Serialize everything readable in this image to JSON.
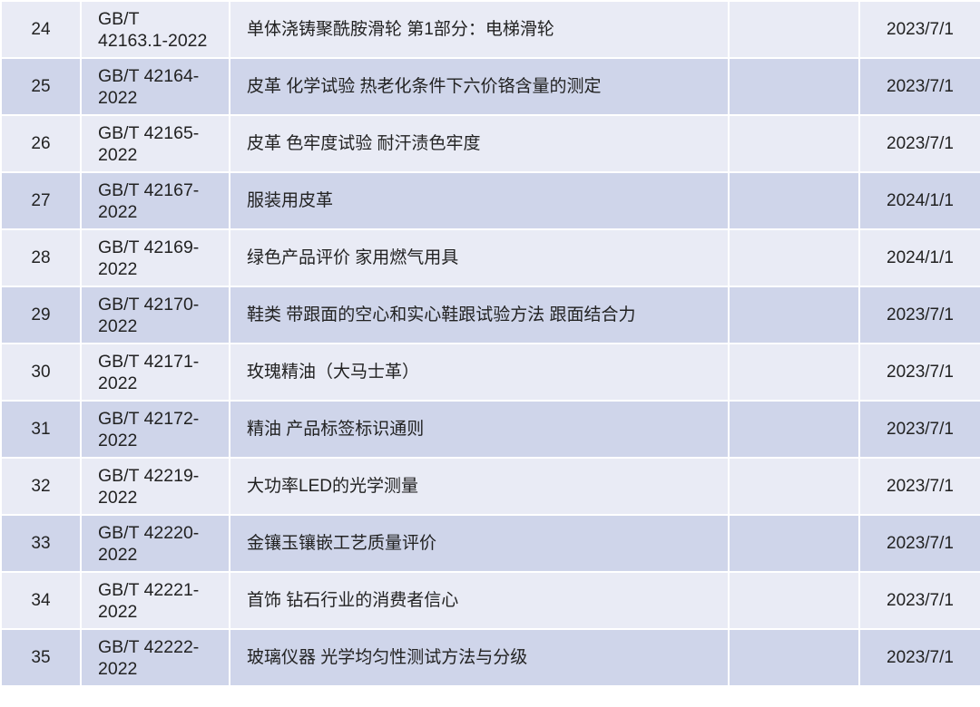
{
  "colors": {
    "row_light": "#e9ebf5",
    "row_dark": "#cfd5ea",
    "border": "#ffffff"
  },
  "rows": [
    {
      "no": "24",
      "code_line1": "GB/T",
      "code_line2": "42163.1-2022",
      "name": "单体浇铸聚酰胺滑轮 第1部分：电梯滑轮",
      "extra": "",
      "date": "2023/7/1"
    },
    {
      "no": "25",
      "code_line1": "GB/T 42164-",
      "code_line2": "2022",
      "name": "皮革 化学试验 热老化条件下六价铬含量的测定",
      "extra": "",
      "date": "2023/7/1"
    },
    {
      "no": "26",
      "code_line1": "GB/T 42165-",
      "code_line2": "2022",
      "name": "皮革 色牢度试验 耐汗渍色牢度",
      "extra": "",
      "date": "2023/7/1"
    },
    {
      "no": "27",
      "code_line1": "GB/T 42167-",
      "code_line2": "2022",
      "name": "服装用皮革",
      "extra": "",
      "date": "2024/1/1"
    },
    {
      "no": "28",
      "code_line1": "GB/T 42169-",
      "code_line2": "2022",
      "name": "绿色产品评价 家用燃气用具",
      "extra": "",
      "date": "2024/1/1"
    },
    {
      "no": "29",
      "code_line1": "GB/T 42170-",
      "code_line2": "2022",
      "name": "鞋类 带跟面的空心和实心鞋跟试验方法 跟面结合力",
      "extra": "",
      "date": "2023/7/1"
    },
    {
      "no": "30",
      "code_line1": "GB/T 42171-",
      "code_line2": "2022",
      "name": "玫瑰精油（大马士革）",
      "extra": "",
      "date": "2023/7/1"
    },
    {
      "no": "31",
      "code_line1": "GB/T 42172-",
      "code_line2": "2022",
      "name": "精油 产品标签标识通则",
      "extra": "",
      "date": "2023/7/1"
    },
    {
      "no": "32",
      "code_line1": "GB/T 42219-",
      "code_line2": "2022",
      "name": "大功率LED的光学测量",
      "extra": "",
      "date": "2023/7/1"
    },
    {
      "no": "33",
      "code_line1": "GB/T 42220-",
      "code_line2": "2022",
      "name": "金镶玉镶嵌工艺质量评价",
      "extra": "",
      "date": "2023/7/1"
    },
    {
      "no": "34",
      "code_line1": "GB/T 42221-",
      "code_line2": "2022",
      "name": "首饰 钻石行业的消费者信心",
      "extra": "",
      "date": "2023/7/1"
    },
    {
      "no": "35",
      "code_line1": "GB/T 42222-",
      "code_line2": "2022",
      "name": "玻璃仪器 光学均匀性测试方法与分级",
      "extra": "",
      "date": "2023/7/1"
    }
  ]
}
